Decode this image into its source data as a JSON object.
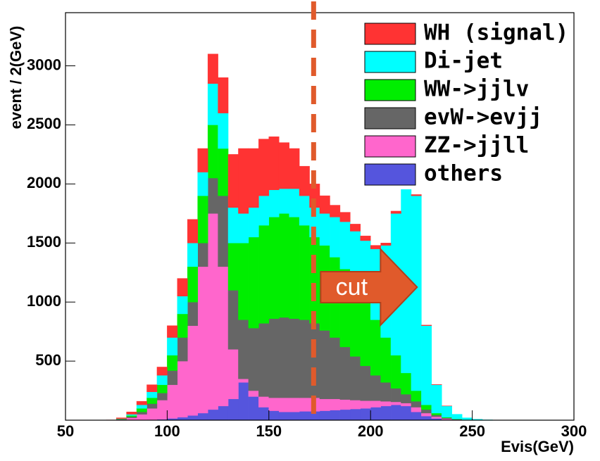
{
  "chart_data": {
    "type": "histogram",
    "xlabel": "Evis(GeV)",
    "ylabel": "event / 2(GeV)",
    "bins": [
      70,
      75,
      80,
      85,
      90,
      95,
      100,
      105,
      110,
      115,
      120,
      125,
      130,
      135,
      140,
      145,
      150,
      155,
      160,
      165,
      170,
      175,
      180,
      185,
      190,
      195,
      200,
      205,
      210,
      215,
      220,
      225,
      230,
      235,
      240,
      245,
      250,
      255,
      260,
      265
    ],
    "stacked": true,
    "series": [
      {
        "name": "others",
        "color": "#5555dd",
        "values": [
          0,
          0,
          0,
          2,
          5,
          8,
          15,
          25,
          40,
          60,
          90,
          120,
          180,
          320,
          200,
          110,
          80,
          70,
          70,
          75,
          75,
          80,
          85,
          90,
          95,
          100,
          110,
          120,
          130,
          120,
          70,
          35,
          15,
          5,
          2,
          1,
          0,
          0,
          0
        ]
      },
      {
        "name": "ZZ->jjll",
        "color": "#ff66cc",
        "values": [
          0,
          5,
          20,
          48,
          95,
          162,
          285,
          475,
          760,
          1240,
          1660,
          1180,
          420,
          30,
          50,
          90,
          110,
          120,
          120,
          115,
          115,
          100,
          95,
          85,
          75,
          65,
          55,
          40,
          25,
          25,
          40,
          25,
          15,
          7,
          3,
          1,
          1,
          0,
          0
        ]
      },
      {
        "name": "evW->evjj",
        "color": "#666666",
        "values": [
          0,
          3,
          10,
          20,
          40,
          60,
          120,
          200,
          200,
          200,
          300,
          600,
          500,
          500,
          530,
          620,
          670,
          680,
          670,
          660,
          630,
          580,
          520,
          445,
          370,
          295,
          215,
          160,
          115,
          75,
          50,
          30,
          15,
          8,
          3,
          1,
          0,
          0,
          0
        ]
      },
      {
        "name": "WW->jjlv",
        "color": "#00ee00",
        "values": [
          0,
          2,
          10,
          30,
          50,
          70,
          130,
          200,
          300,
          400,
          450,
          400,
          400,
          650,
          770,
          830,
          860,
          880,
          860,
          800,
          730,
          720,
          680,
          660,
          610,
          560,
          470,
          380,
          280,
          180,
          90,
          40,
          15,
          5,
          2,
          1,
          1,
          1,
          0
        ]
      },
      {
        "name": "Di-jet",
        "color": "#00ffff",
        "values": [
          0,
          2,
          10,
          30,
          50,
          80,
          150,
          150,
          200,
          200,
          350,
          300,
          300,
          250,
          250,
          250,
          230,
          210,
          240,
          250,
          250,
          270,
          340,
          400,
          450,
          500,
          600,
          780,
          1200,
          1900,
          1650,
          670,
          240,
          95,
          40,
          16,
          6,
          2,
          1
        ]
      },
      {
        "name": "WH (signal)",
        "color": "#ff3333",
        "values": [
          2,
          8,
          20,
          30,
          60,
          70,
          100,
          150,
          200,
          200,
          250,
          300,
          450,
          550,
          500,
          480,
          450,
          390,
          340,
          250,
          200,
          150,
          100,
          80,
          60,
          40,
          30,
          20,
          20,
          20,
          10,
          5,
          2,
          1,
          0,
          0,
          0,
          0,
          0
        ]
      }
    ],
    "xlim": [
      50,
      300
    ],
    "ylim": [
      0,
      3450
    ],
    "xticks": [
      50,
      100,
      150,
      200,
      250,
      300
    ],
    "yticks": [
      500,
      1000,
      1500,
      2000,
      2500,
      3000
    ],
    "legend": "upper right",
    "annotations": [
      {
        "text": "cut",
        "x": 172,
        "color": "#e05a2b"
      }
    ]
  }
}
